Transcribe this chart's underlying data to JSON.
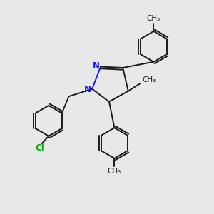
{
  "bg_color": "#e8e8e8",
  "bond_color": "#1a1a1a",
  "n_color": "#1818ff",
  "cl_color": "#00aa00",
  "line_width": 1.4,
  "font_size": 8.5,
  "figsize": [
    3.0,
    3.0
  ],
  "dpi": 100,
  "xlim": [
    0,
    10
  ],
  "ylim": [
    0,
    10
  ]
}
